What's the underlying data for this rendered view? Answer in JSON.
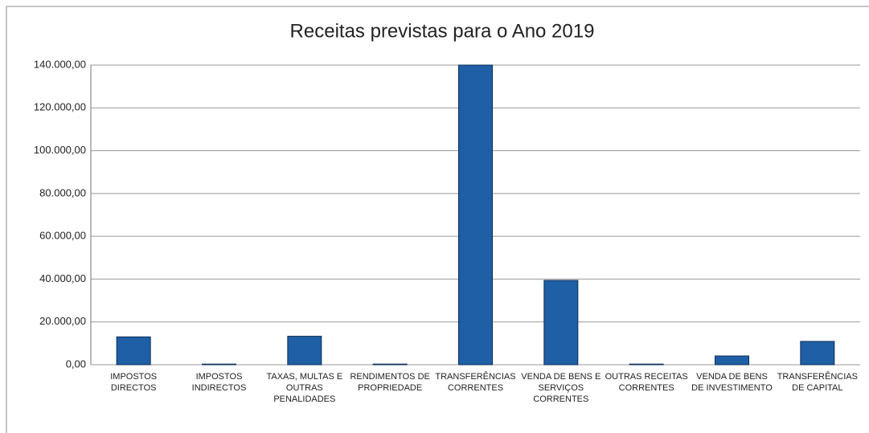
{
  "chart_data": {
    "type": "bar",
    "title": "Receitas previstas para o Ano 2019",
    "categories": [
      "IMPOSTOS DIRECTOS",
      "IMPOSTOS INDIRECTOS",
      "TAXAS, MULTAS E OUTRAS PENALIDADES",
      "RENDIMENTOS DE PROPRIEDADE",
      "TRANSFERÊNCIAS CORRENTES",
      "VENDA DE BENS E SERVIÇOS CORRENTES",
      "OUTRAS RECEITAS CORRENTES",
      "VENDA DE BENS DE INVESTIMENTO",
      "TRANSFERÊNCIAS DE CAPITAL"
    ],
    "values": [
      13000,
      300,
      13300,
      300,
      140000,
      39400,
      300,
      4100,
      10900
    ],
    "color": "#1f5fa6",
    "ylim": [
      0,
      140000
    ],
    "yticks": [
      {
        "value": 0,
        "label": "0,00"
      },
      {
        "value": 20000,
        "label": "20.000,00"
      },
      {
        "value": 40000,
        "label": "40.000,00"
      },
      {
        "value": 60000,
        "label": "60.000,00"
      },
      {
        "value": 80000,
        "label": "80.000,00"
      },
      {
        "value": 100000,
        "label": "100.000,00"
      },
      {
        "value": 120000,
        "label": "120.000,00"
      },
      {
        "value": 140000,
        "label": "140.000,00"
      }
    ],
    "grid": true
  }
}
